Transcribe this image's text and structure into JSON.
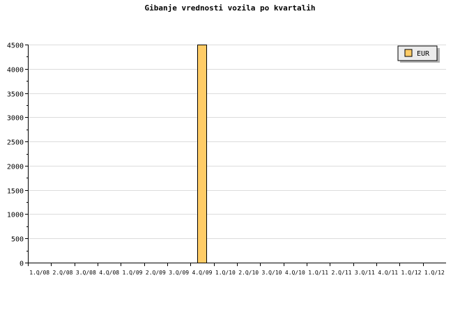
{
  "chart_data": {
    "type": "bar",
    "title": "Gibanje vrednosti vozila po kvartalih",
    "xlabel": "",
    "ylabel": "",
    "categories": [
      "1.Q/08",
      "2.Q/08",
      "3.Q/08",
      "4.Q/08",
      "1.Q/09",
      "2.Q/09",
      "3.Q/09",
      "4.Q/09",
      "1.Q/10",
      "2.Q/10",
      "3.Q/10",
      "4.Q/10",
      "1.Q/11",
      "2.Q/11",
      "3.Q/11",
      "4.Q/11",
      "1.Q/12",
      "1.Q/12"
    ],
    "series": [
      {
        "name": "EUR",
        "values": [
          0,
          0,
          0,
          0,
          0,
          0,
          0,
          4500,
          0,
          0,
          0,
          0,
          0,
          0,
          0,
          0,
          0,
          0
        ],
        "color": "#ffcc66"
      }
    ],
    "ylim": [
      0,
      4500
    ],
    "yticks": [
      0,
      500,
      1000,
      1500,
      2000,
      2500,
      3000,
      3500,
      4000,
      4500
    ],
    "grid": true,
    "legend": "top-right"
  }
}
